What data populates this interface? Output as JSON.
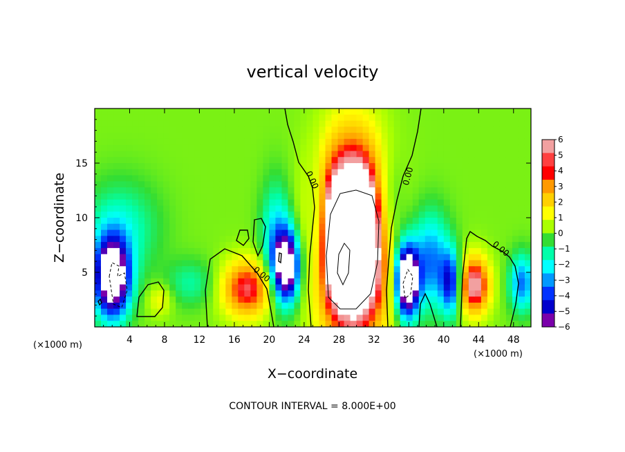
{
  "chart_data": {
    "type": "heatmap",
    "title": "vertical velocity",
    "xlabel": "X−coordinate",
    "ylabel": "Z−coordinate",
    "x_unit_left": "(×1000 m)",
    "x_unit_right": "(×1000 m)",
    "footer": "CONTOUR INTERVAL = 8.000E+00",
    "xlim": [
      0,
      50
    ],
    "ylim": [
      0,
      20
    ],
    "x_ticks": [
      4,
      8,
      12,
      16,
      20,
      24,
      28,
      32,
      36,
      40,
      44,
      48
    ],
    "x_tick_labels": [
      "4",
      "8",
      "12",
      "16",
      "20",
      "24",
      "28",
      "32",
      "36",
      "40",
      "44",
      "48"
    ],
    "y_ticks": [
      5,
      10,
      15
    ],
    "y_tick_labels": [
      "5",
      "10",
      "15"
    ],
    "colorbar": {
      "min": -6,
      "max": 6,
      "labels": [
        "6",
        "5",
        "4",
        "3",
        "2",
        "1",
        "0",
        "−1",
        "−2",
        "−3",
        "−4",
        "−5",
        "−6"
      ],
      "values": [
        6,
        5,
        4,
        3,
        2,
        1,
        0,
        -1,
        -2,
        -3,
        -4,
        -5,
        -6
      ],
      "colors": [
        "#f2a0a0",
        "#ff4040",
        "#ff0000",
        "#ff9900",
        "#ffd000",
        "#ffff00",
        "#aaff00",
        "#33dd33",
        "#00ffaa",
        "#00ffff",
        "#0099ff",
        "#0033ff",
        "#0000cc",
        "#7a00aa"
      ]
    },
    "contour_label": "0.00",
    "features": [
      {
        "kind": "updraft",
        "x": 29.5,
        "z": 8.0,
        "sx": 2.6,
        "sz": 5.5,
        "value": 14
      },
      {
        "kind": "updraft",
        "x": 17.5,
        "z": 3.5,
        "sx": 2.0,
        "sz": 1.8,
        "value": 5
      },
      {
        "kind": "updraft",
        "x": 43.5,
        "z": 3.8,
        "sx": 1.2,
        "sz": 1.8,
        "value": 6
      },
      {
        "kind": "updraft",
        "x": 7.5,
        "z": 2.5,
        "sx": 1.0,
        "sz": 1.0,
        "value": 1.5
      },
      {
        "kind": "downdraft",
        "x": 2.0,
        "z": 4.5,
        "sx": 1.4,
        "sz": 2.5,
        "value": -10
      },
      {
        "kind": "downdraft",
        "x": 22.0,
        "z": 5.5,
        "sx": 1.0,
        "sz": 2.2,
        "value": -9
      },
      {
        "kind": "downdraft",
        "x": 35.8,
        "z": 4.2,
        "sx": 0.9,
        "sz": 2.2,
        "value": -11
      },
      {
        "kind": "downdraft",
        "x": 38.5,
        "z": 6.0,
        "sx": 1.5,
        "sz": 3.0,
        "value": -4
      },
      {
        "kind": "downdraft",
        "x": 40.8,
        "z": 4.0,
        "sx": 0.8,
        "sz": 2.0,
        "value": -5
      },
      {
        "kind": "downdraft",
        "x": 20.8,
        "z": 8.0,
        "sx": 1.2,
        "sz": 3.5,
        "value": -3
      },
      {
        "kind": "downdraft",
        "x": 25.5,
        "z": 9.0,
        "sx": 0.9,
        "sz": 4.0,
        "value": -2.5
      },
      {
        "kind": "downdraft",
        "x": 33.5,
        "z": 10.5,
        "sx": 1.3,
        "sz": 3.5,
        "value": -2.5
      },
      {
        "kind": "downdraft",
        "x": 49.0,
        "z": 4.0,
        "sx": 1.0,
        "sz": 1.8,
        "value": -4
      },
      {
        "kind": "downdraft",
        "x": 11.0,
        "z": 4.0,
        "sx": 2.0,
        "sz": 1.5,
        "value": -1.5
      },
      {
        "kind": "downdraft",
        "x": 3.0,
        "z": 9.0,
        "sx": 3.0,
        "sz": 3.0,
        "value": -2
      }
    ]
  }
}
